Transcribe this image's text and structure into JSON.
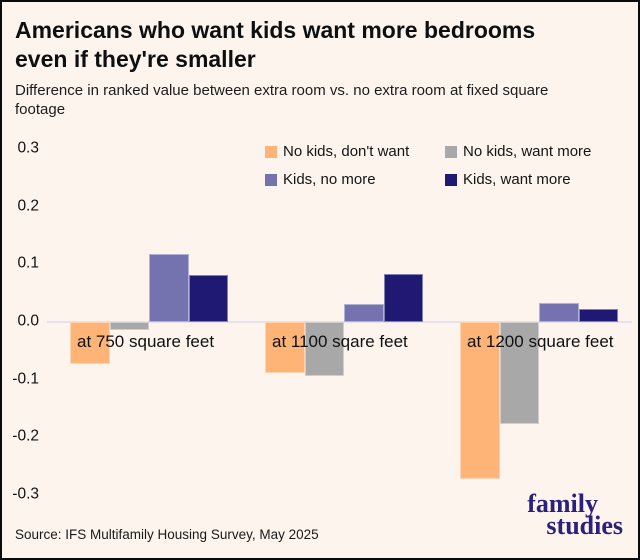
{
  "header": {
    "title_lines": [
      "Americans who want kids want more bedrooms",
      "even if they're smaller"
    ],
    "subtitle_lines": [
      "Difference in ranked value between extra room vs. no extra room at fixed square",
      "footage"
    ]
  },
  "chart_data": {
    "type": "bar",
    "title": "Americans who want kids want more bedrooms even if they're smaller",
    "subtitle": "Difference in ranked value between extra room vs. no extra room at fixed square footage",
    "categories": [
      "at 750 square feet",
      "at 1100 sqare feet",
      "at 1200 square feet"
    ],
    "series": [
      {
        "name": "No kids, don't want",
        "color": "#feb377",
        "values": [
          -0.072,
          -0.088,
          -0.272
        ]
      },
      {
        "name": "No kids, want more",
        "color": "#a8a8a8",
        "values": [
          -0.013,
          -0.093,
          -0.176
        ]
      },
      {
        "name": "Kids, no more",
        "color": "#7572b0",
        "values": [
          0.118,
          0.032,
          0.033
        ]
      },
      {
        "name": "Kids, want more",
        "color": "#1f1973",
        "values": [
          0.081,
          0.083,
          0.022
        ]
      }
    ],
    "y_ticks": [
      "0.3",
      "0.2",
      "0.1",
      "0.0",
      "-0.1",
      "-0.2",
      "-0.3"
    ],
    "ylim": [
      -0.3,
      0.3
    ],
    "xlabel": "",
    "ylabel": "",
    "grid": false,
    "legend_position": "top-right"
  },
  "footer": {
    "source": "Source: IFS Multifamily Housing Survey, May 2025",
    "logo_lines": [
      "family",
      "studies"
    ]
  },
  "colors": {
    "background": "#fdf4ed",
    "baseline": "#e4e2f1",
    "logo_navy": "#2a217c",
    "text": "#111111",
    "border": "#0a0a0a"
  }
}
